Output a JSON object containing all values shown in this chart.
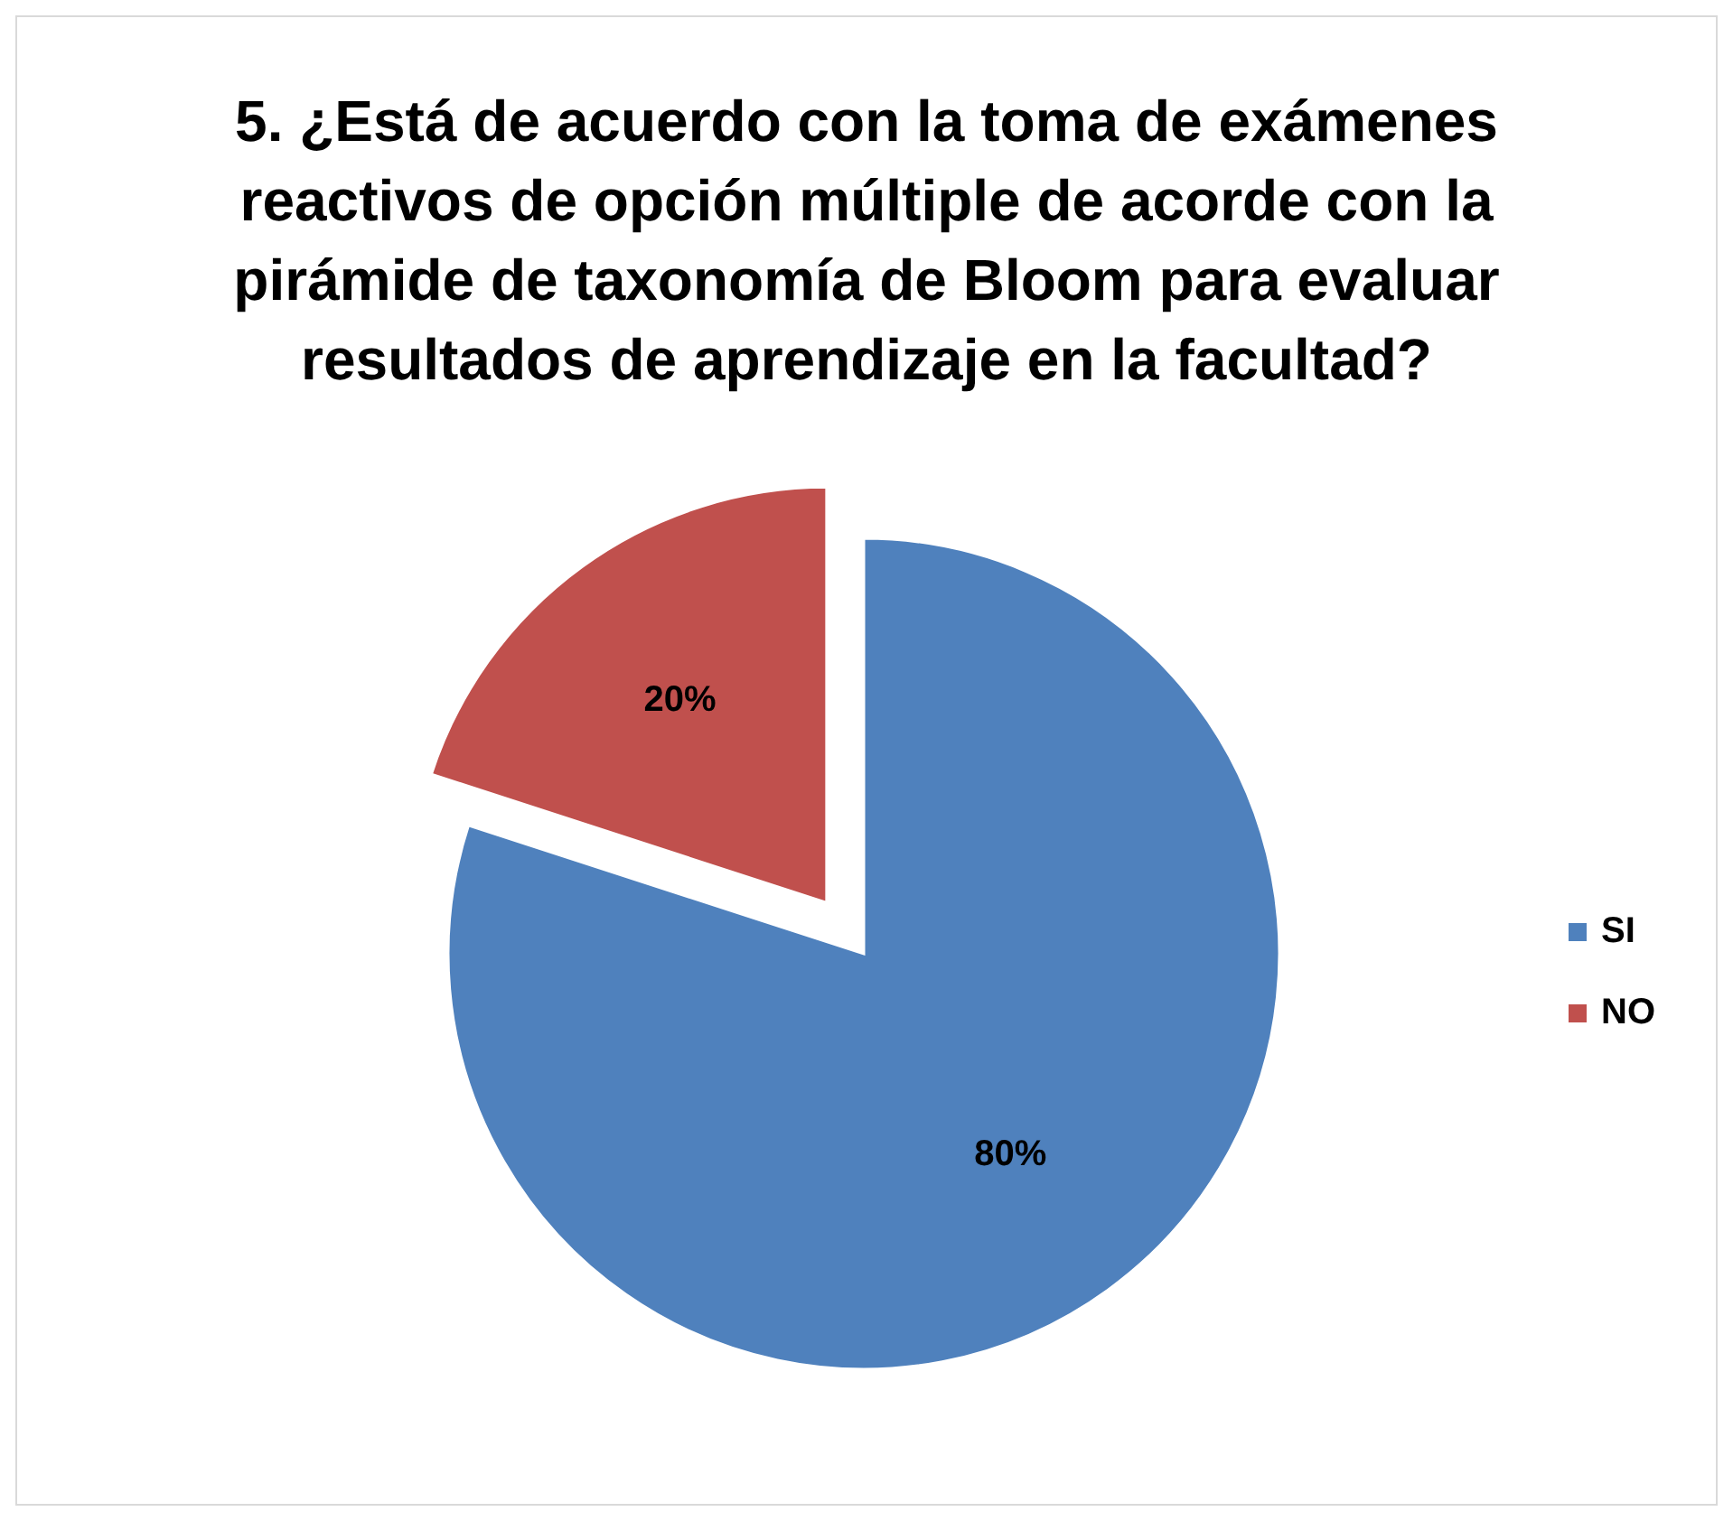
{
  "chart_data": {
    "type": "pie",
    "title": "5. ¿Está de acuerdo con la toma de exámenes reactivos de opción múltiple de acorde con la pirámide de taxonomía de Bloom para evaluar resultados de aprendizaje en la facultad?",
    "categories": [
      "SI",
      "NO"
    ],
    "values": [
      80,
      20
    ],
    "colors": [
      "#4f81bd",
      "#c0504d"
    ],
    "value_labels": [
      "80%",
      "20%"
    ],
    "legend": "right"
  }
}
